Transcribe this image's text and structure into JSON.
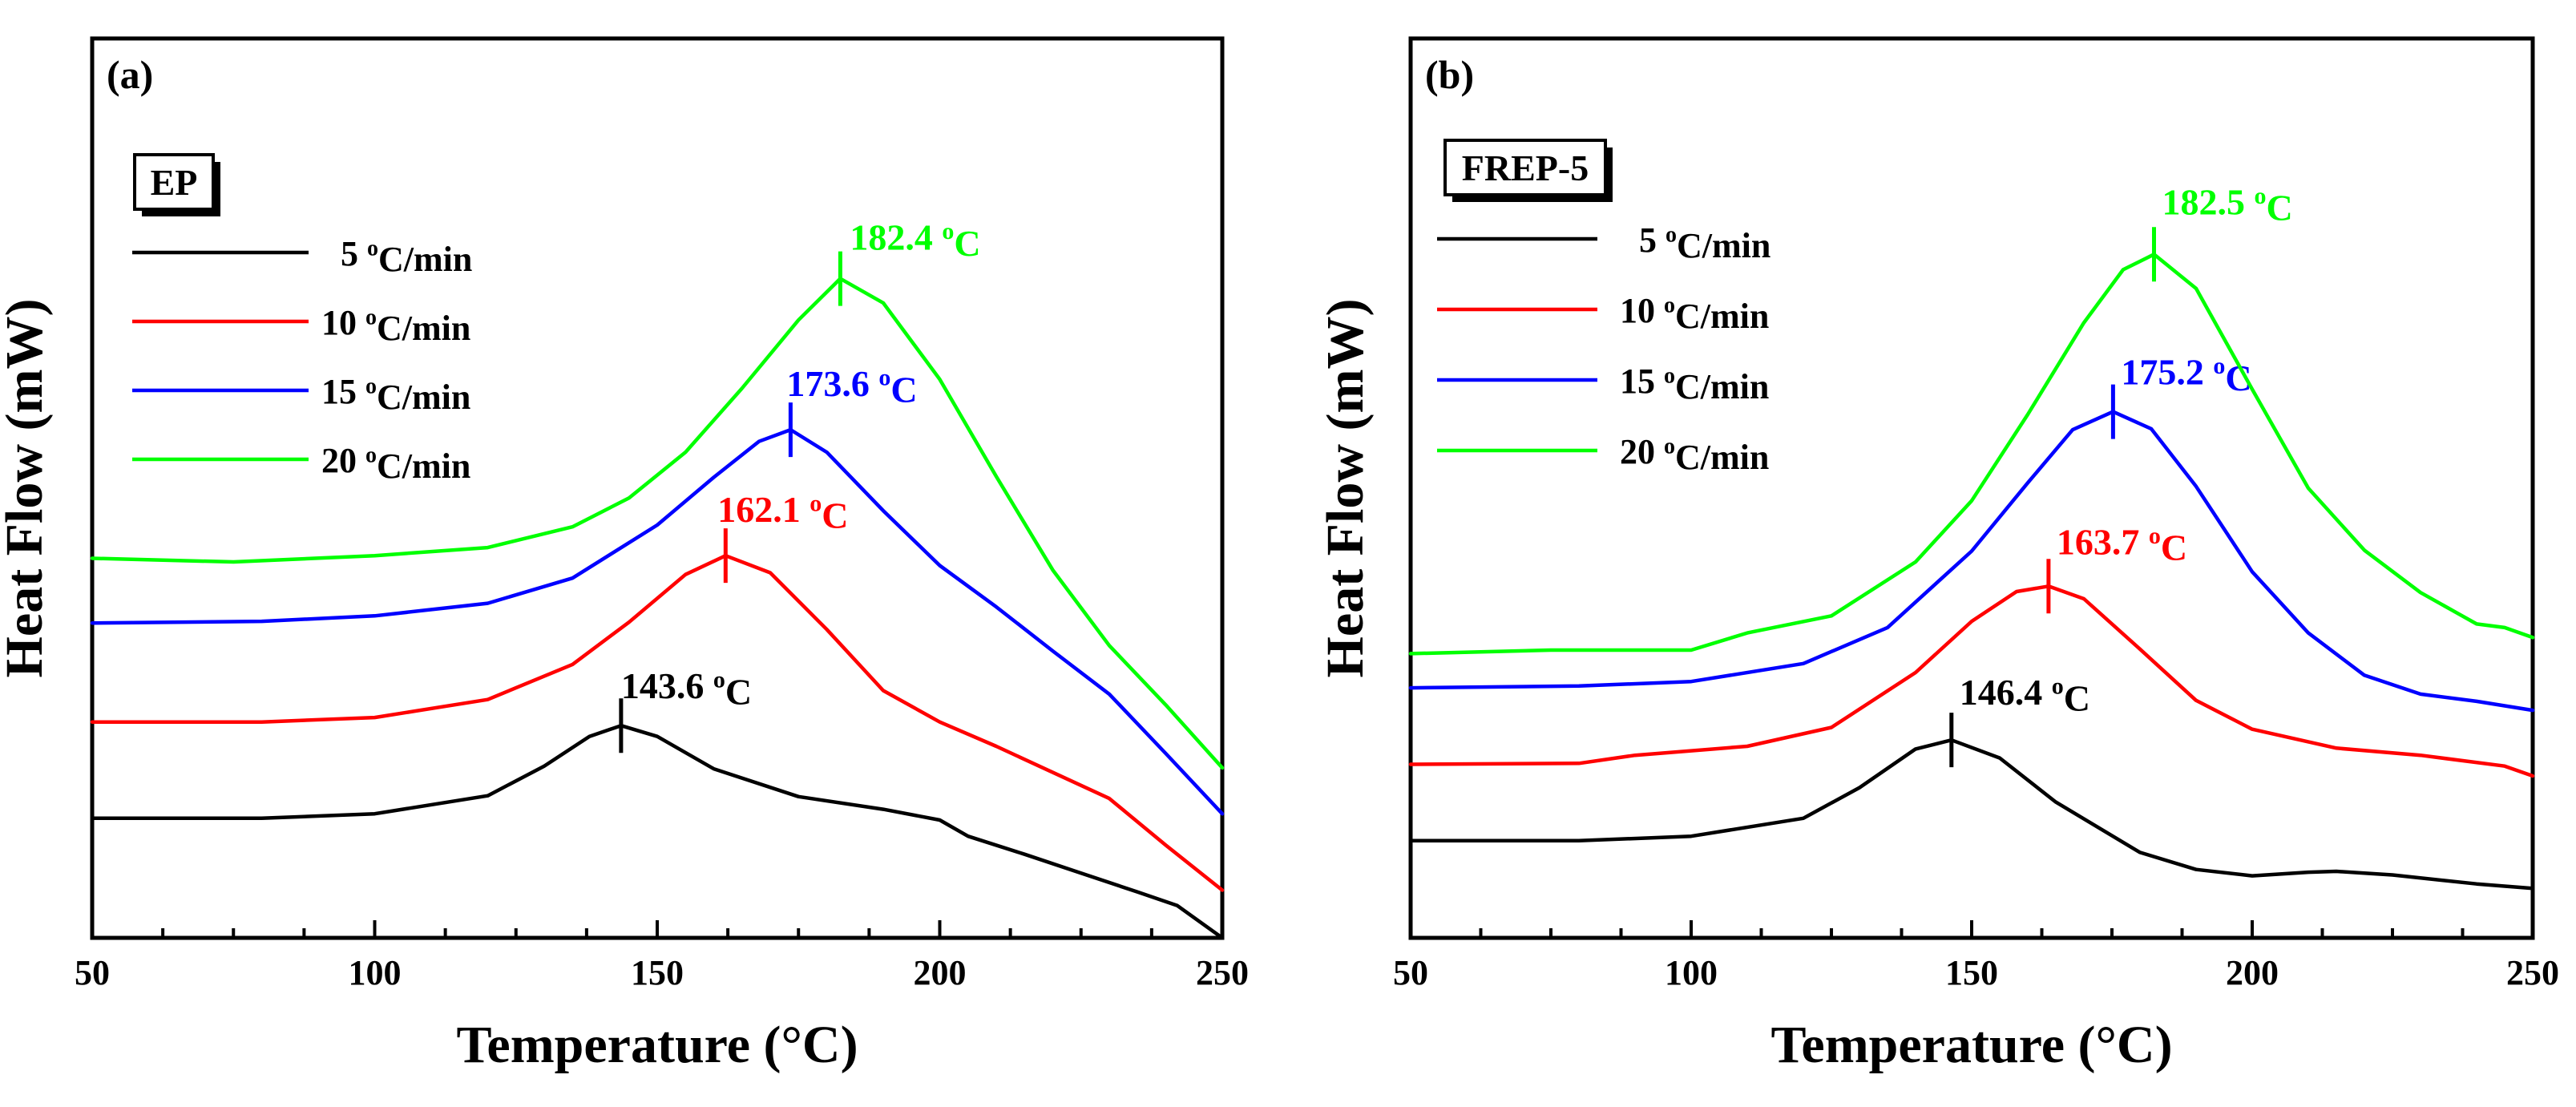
{
  "chart_data": [
    {
      "type": "line",
      "panel_label": "(a)",
      "sample": "EP",
      "title": "",
      "xlabel": "Temperature (°C)",
      "ylabel": "Heat Flow (mW)",
      "xlim": [
        50,
        250
      ],
      "ylim": [
        0,
        1
      ],
      "xticks": [
        "50",
        "100",
        "150",
        "200",
        "250"
      ],
      "y_ticks_labeled": false,
      "legend_location": "upper-left",
      "series": [
        {
          "name": "5 oC/min",
          "label_prefix": "5 ",
          "color": "#000000",
          "peak": {
            "x": 143.6,
            "label": "143.6 ",
            "unit": "C",
            "sup": "o"
          },
          "x": [
            50,
            80,
            100,
            120,
            130,
            138,
            143.6,
            150,
            160,
            175,
            190,
            200,
            205,
            215,
            225,
            235,
            242,
            250
          ],
          "y": [
            0.133,
            0.133,
            0.138,
            0.158,
            0.191,
            0.224,
            0.236,
            0.224,
            0.188,
            0.157,
            0.143,
            0.131,
            0.113,
            0.093,
            0.072,
            0.051,
            0.036,
            0.0
          ]
        },
        {
          "name": "10 oC/min",
          "label_prefix": "10 ",
          "color": "#ff0000",
          "peak": {
            "x": 162.1,
            "label": "162.1 ",
            "unit": "C",
            "sup": "o"
          },
          "x": [
            50,
            80,
            100,
            120,
            135,
            145,
            155,
            162.1,
            170,
            180,
            190,
            200,
            210,
            220,
            230,
            240,
            250
          ],
          "y": [
            0.24,
            0.24,
            0.245,
            0.265,
            0.304,
            0.351,
            0.404,
            0.425,
            0.406,
            0.343,
            0.275,
            0.24,
            0.213,
            0.184,
            0.155,
            0.103,
            0.053
          ]
        },
        {
          "name": "15 oC/min",
          "label_prefix": "15 ",
          "color": "#0000ff",
          "peak": {
            "x": 173.6,
            "label": "173.6 ",
            "unit": "C",
            "sup": "o"
          },
          "x": [
            50,
            80,
            100,
            120,
            135,
            150,
            160,
            168,
            173.6,
            180,
            190,
            200,
            210,
            220,
            230,
            240,
            250
          ],
          "y": [
            0.35,
            0.352,
            0.358,
            0.372,
            0.4,
            0.459,
            0.512,
            0.552,
            0.565,
            0.54,
            0.475,
            0.414,
            0.368,
            0.319,
            0.271,
            0.205,
            0.138
          ]
        },
        {
          "name": "20 oC/min",
          "label_prefix": "20 ",
          "color": "#00ff00",
          "peak": {
            "x": 182.4,
            "label": "182.4 ",
            "unit": "C",
            "sup": "o"
          },
          "x": [
            50,
            75,
            100,
            120,
            135,
            145,
            155,
            165,
            175,
            182.4,
            190,
            200,
            210,
            220,
            230,
            240,
            250
          ],
          "y": [
            0.422,
            0.418,
            0.425,
            0.434,
            0.457,
            0.489,
            0.54,
            0.611,
            0.687,
            0.733,
            0.706,
            0.621,
            0.513,
            0.409,
            0.325,
            0.259,
            0.189
          ]
        }
      ]
    },
    {
      "type": "line",
      "panel_label": "(b)",
      "sample": "FREP-5",
      "title": "",
      "xlabel": "Temperature (°C)",
      "ylabel": "Heat Flow (mW)",
      "xlim": [
        50,
        250
      ],
      "ylim": [
        0,
        1
      ],
      "xticks": [
        "50",
        "100",
        "150",
        "200",
        "250"
      ],
      "y_ticks_labeled": false,
      "legend_location": "upper-left",
      "series": [
        {
          "name": "5 oC/min",
          "label_prefix": "5 ",
          "color": "#000000",
          "peak": {
            "x": 146.4,
            "label": "146.4 ",
            "unit": "C",
            "sup": "o"
          },
          "x": [
            50,
            80,
            100,
            120,
            130,
            140,
            146.4,
            155,
            165,
            180,
            190,
            200,
            210,
            215,
            225,
            240,
            250
          ],
          "y": [
            0.108,
            0.108,
            0.113,
            0.133,
            0.167,
            0.21,
            0.22,
            0.2,
            0.151,
            0.095,
            0.076,
            0.069,
            0.073,
            0.074,
            0.07,
            0.06,
            0.055
          ]
        },
        {
          "name": "10 oC/min",
          "label_prefix": "10 ",
          "color": "#ff0000",
          "peak": {
            "x": 163.7,
            "label": "163.7 ",
            "unit": "C",
            "sup": "o"
          },
          "x": [
            50,
            80,
            90,
            110,
            125,
            140,
            150,
            158,
            163.7,
            170,
            180,
            190,
            200,
            215,
            230,
            245,
            250
          ],
          "y": [
            0.193,
            0.194,
            0.203,
            0.213,
            0.234,
            0.295,
            0.352,
            0.385,
            0.391,
            0.377,
            0.321,
            0.264,
            0.232,
            0.211,
            0.203,
            0.191,
            0.18
          ]
        },
        {
          "name": "15 oC/min",
          "label_prefix": "15 ",
          "color": "#0000ff",
          "peak": {
            "x": 175.2,
            "label": "175.2 ",
            "unit": "C",
            "sup": "o"
          },
          "x": [
            50,
            80,
            100,
            120,
            135,
            150,
            160,
            168,
            175.2,
            182,
            190,
            200,
            210,
            220,
            230,
            240,
            250
          ],
          "y": [
            0.278,
            0.28,
            0.285,
            0.305,
            0.345,
            0.43,
            0.506,
            0.565,
            0.585,
            0.566,
            0.502,
            0.407,
            0.339,
            0.292,
            0.271,
            0.263,
            0.253
          ]
        },
        {
          "name": "20 oC/min",
          "label_prefix": "20 ",
          "color": "#00ff00",
          "peak": {
            "x": 182.5,
            "label": "182.5 ",
            "unit": "C",
            "sup": "o"
          },
          "x": [
            50,
            75,
            100,
            110,
            125,
            140,
            150,
            160,
            170,
            177,
            182.5,
            190,
            200,
            210,
            220,
            230,
            240,
            245,
            250
          ],
          "y": [
            0.316,
            0.32,
            0.32,
            0.339,
            0.358,
            0.418,
            0.486,
            0.582,
            0.684,
            0.743,
            0.76,
            0.722,
            0.61,
            0.5,
            0.431,
            0.384,
            0.349,
            0.345,
            0.334
          ]
        }
      ]
    }
  ]
}
